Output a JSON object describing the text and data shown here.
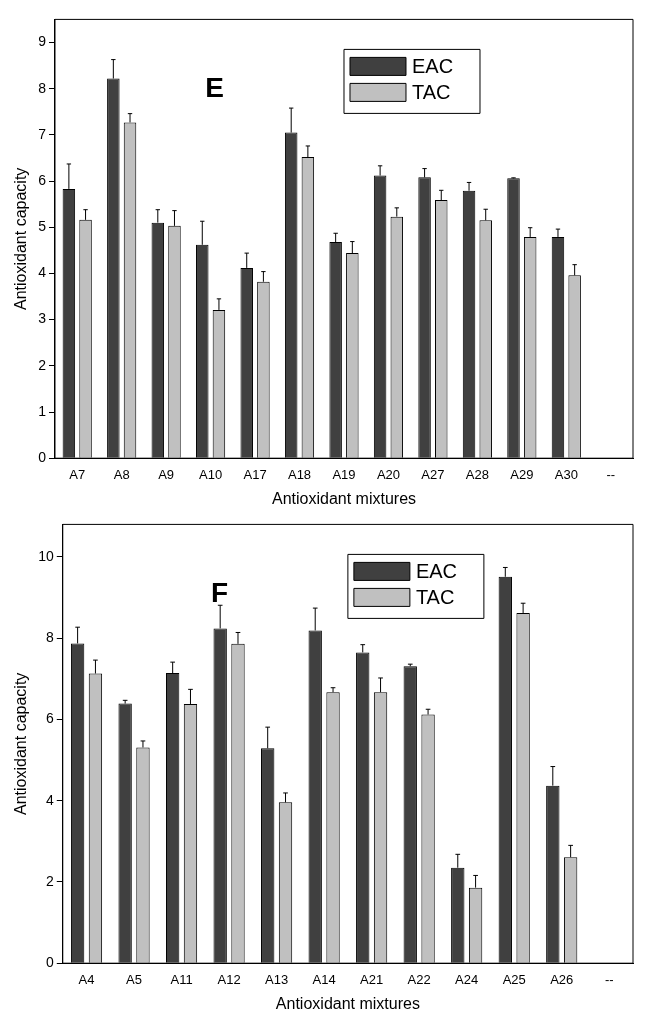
{
  "chart_data": [
    {
      "type": "bar",
      "categories": [
        "A7",
        "A8",
        "A9",
        "A10",
        "A17",
        "A18",
        "A19",
        "A20",
        "A27",
        "A28",
        "A29",
        "A30",
        "--"
      ],
      "xlabel": "Antioxidant mixtures",
      "ylabel": "Antioxidant capacity",
      "ylim": [
        0,
        9.5
      ],
      "yticks": [
        0,
        1,
        2,
        3,
        4,
        5,
        6,
        7,
        8,
        9
      ],
      "grid": false,
      "legend": "top right",
      "annotations": [
        "E"
      ],
      "series": [
        {
          "name": "EAC",
          "color": "#404040",
          "values": [
            5.83,
            8.22,
            5.1,
            4.62,
            4.12,
            7.05,
            4.68,
            6.12,
            6.08,
            5.79,
            6.06,
            4.79,
            null
          ],
          "errors": [
            [
              5.83,
              6.37
            ],
            [
              8.22,
              8.63
            ],
            [
              5.1,
              5.38
            ],
            [
              4.62,
              5.13
            ],
            [
              4.12,
              4.44
            ],
            [
              7.05,
              7.58
            ],
            [
              4.68,
              4.87
            ],
            [
              6.12,
              6.33
            ],
            [
              6.08,
              6.27
            ],
            [
              5.79,
              5.97
            ],
            [
              6.06,
              6.07
            ],
            [
              4.79,
              4.96
            ],
            null
          ]
        },
        {
          "name": "TAC",
          "color": "#c0c0c0",
          "values": [
            5.16,
            7.27,
            5.03,
            3.21,
            3.82,
            6.52,
            4.44,
            5.23,
            5.59,
            5.15,
            4.79,
            3.96,
            null
          ],
          "errors": [
            [
              5.16,
              5.38
            ],
            [
              7.27,
              7.46
            ],
            [
              5.03,
              5.36
            ],
            [
              3.21,
              3.45
            ],
            [
              3.82,
              4.04
            ],
            [
              6.52,
              6.76
            ],
            [
              4.44,
              4.69
            ],
            [
              5.23,
              5.42
            ],
            [
              5.59,
              5.8
            ],
            [
              5.15,
              5.39
            ],
            [
              4.79,
              4.99
            ],
            [
              3.96,
              4.19
            ],
            null
          ]
        }
      ]
    },
    {
      "type": "bar",
      "categories": [
        "A4",
        "A5",
        "A11",
        "A12",
        "A13",
        "A14",
        "A21",
        "A22",
        "A24",
        "A25",
        "A26",
        "--"
      ],
      "xlabel": "Antioxidant mixtures",
      "ylabel": "Antioxidant capacity",
      "ylim": [
        0,
        10.8
      ],
      "yticks": [
        0,
        2,
        4,
        6,
        8,
        10
      ],
      "grid": false,
      "legend": "top right",
      "annotations": [
        "F"
      ],
      "series": [
        {
          "name": "EAC",
          "color": "#404040",
          "values": [
            7.87,
            6.39,
            7.14,
            8.24,
            5.29,
            8.19,
            7.65,
            7.31,
            2.35,
            9.51,
            4.37,
            null
          ],
          "errors": [
            [
              7.87,
              8.27
            ],
            [
              6.39,
              6.47
            ],
            [
              7.14,
              7.41
            ],
            [
              8.24,
              8.81
            ],
            [
              5.29,
              5.81
            ],
            [
              8.19,
              8.74
            ],
            [
              7.65,
              7.84
            ],
            [
              7.31,
              7.36
            ],
            [
              2.35,
              2.68
            ],
            [
              9.51,
              9.74
            ],
            [
              4.37,
              4.84
            ],
            null
          ]
        },
        {
          "name": "TAC",
          "color": "#c0c0c0",
          "values": [
            7.13,
            5.31,
            6.38,
            7.86,
            3.96,
            6.67,
            6.67,
            6.12,
            1.86,
            8.62,
            2.61,
            null
          ],
          "errors": [
            [
              7.13,
              7.46
            ],
            [
              5.31,
              5.47
            ],
            [
              6.38,
              6.74
            ],
            [
              7.86,
              8.14
            ],
            [
              3.96,
              4.19
            ],
            [
              6.67,
              6.78
            ],
            [
              6.67,
              7.02
            ],
            [
              6.12,
              6.25
            ],
            [
              1.86,
              2.16
            ],
            [
              8.62,
              8.86
            ],
            [
              2.61,
              2.9
            ],
            null
          ]
        }
      ]
    }
  ]
}
